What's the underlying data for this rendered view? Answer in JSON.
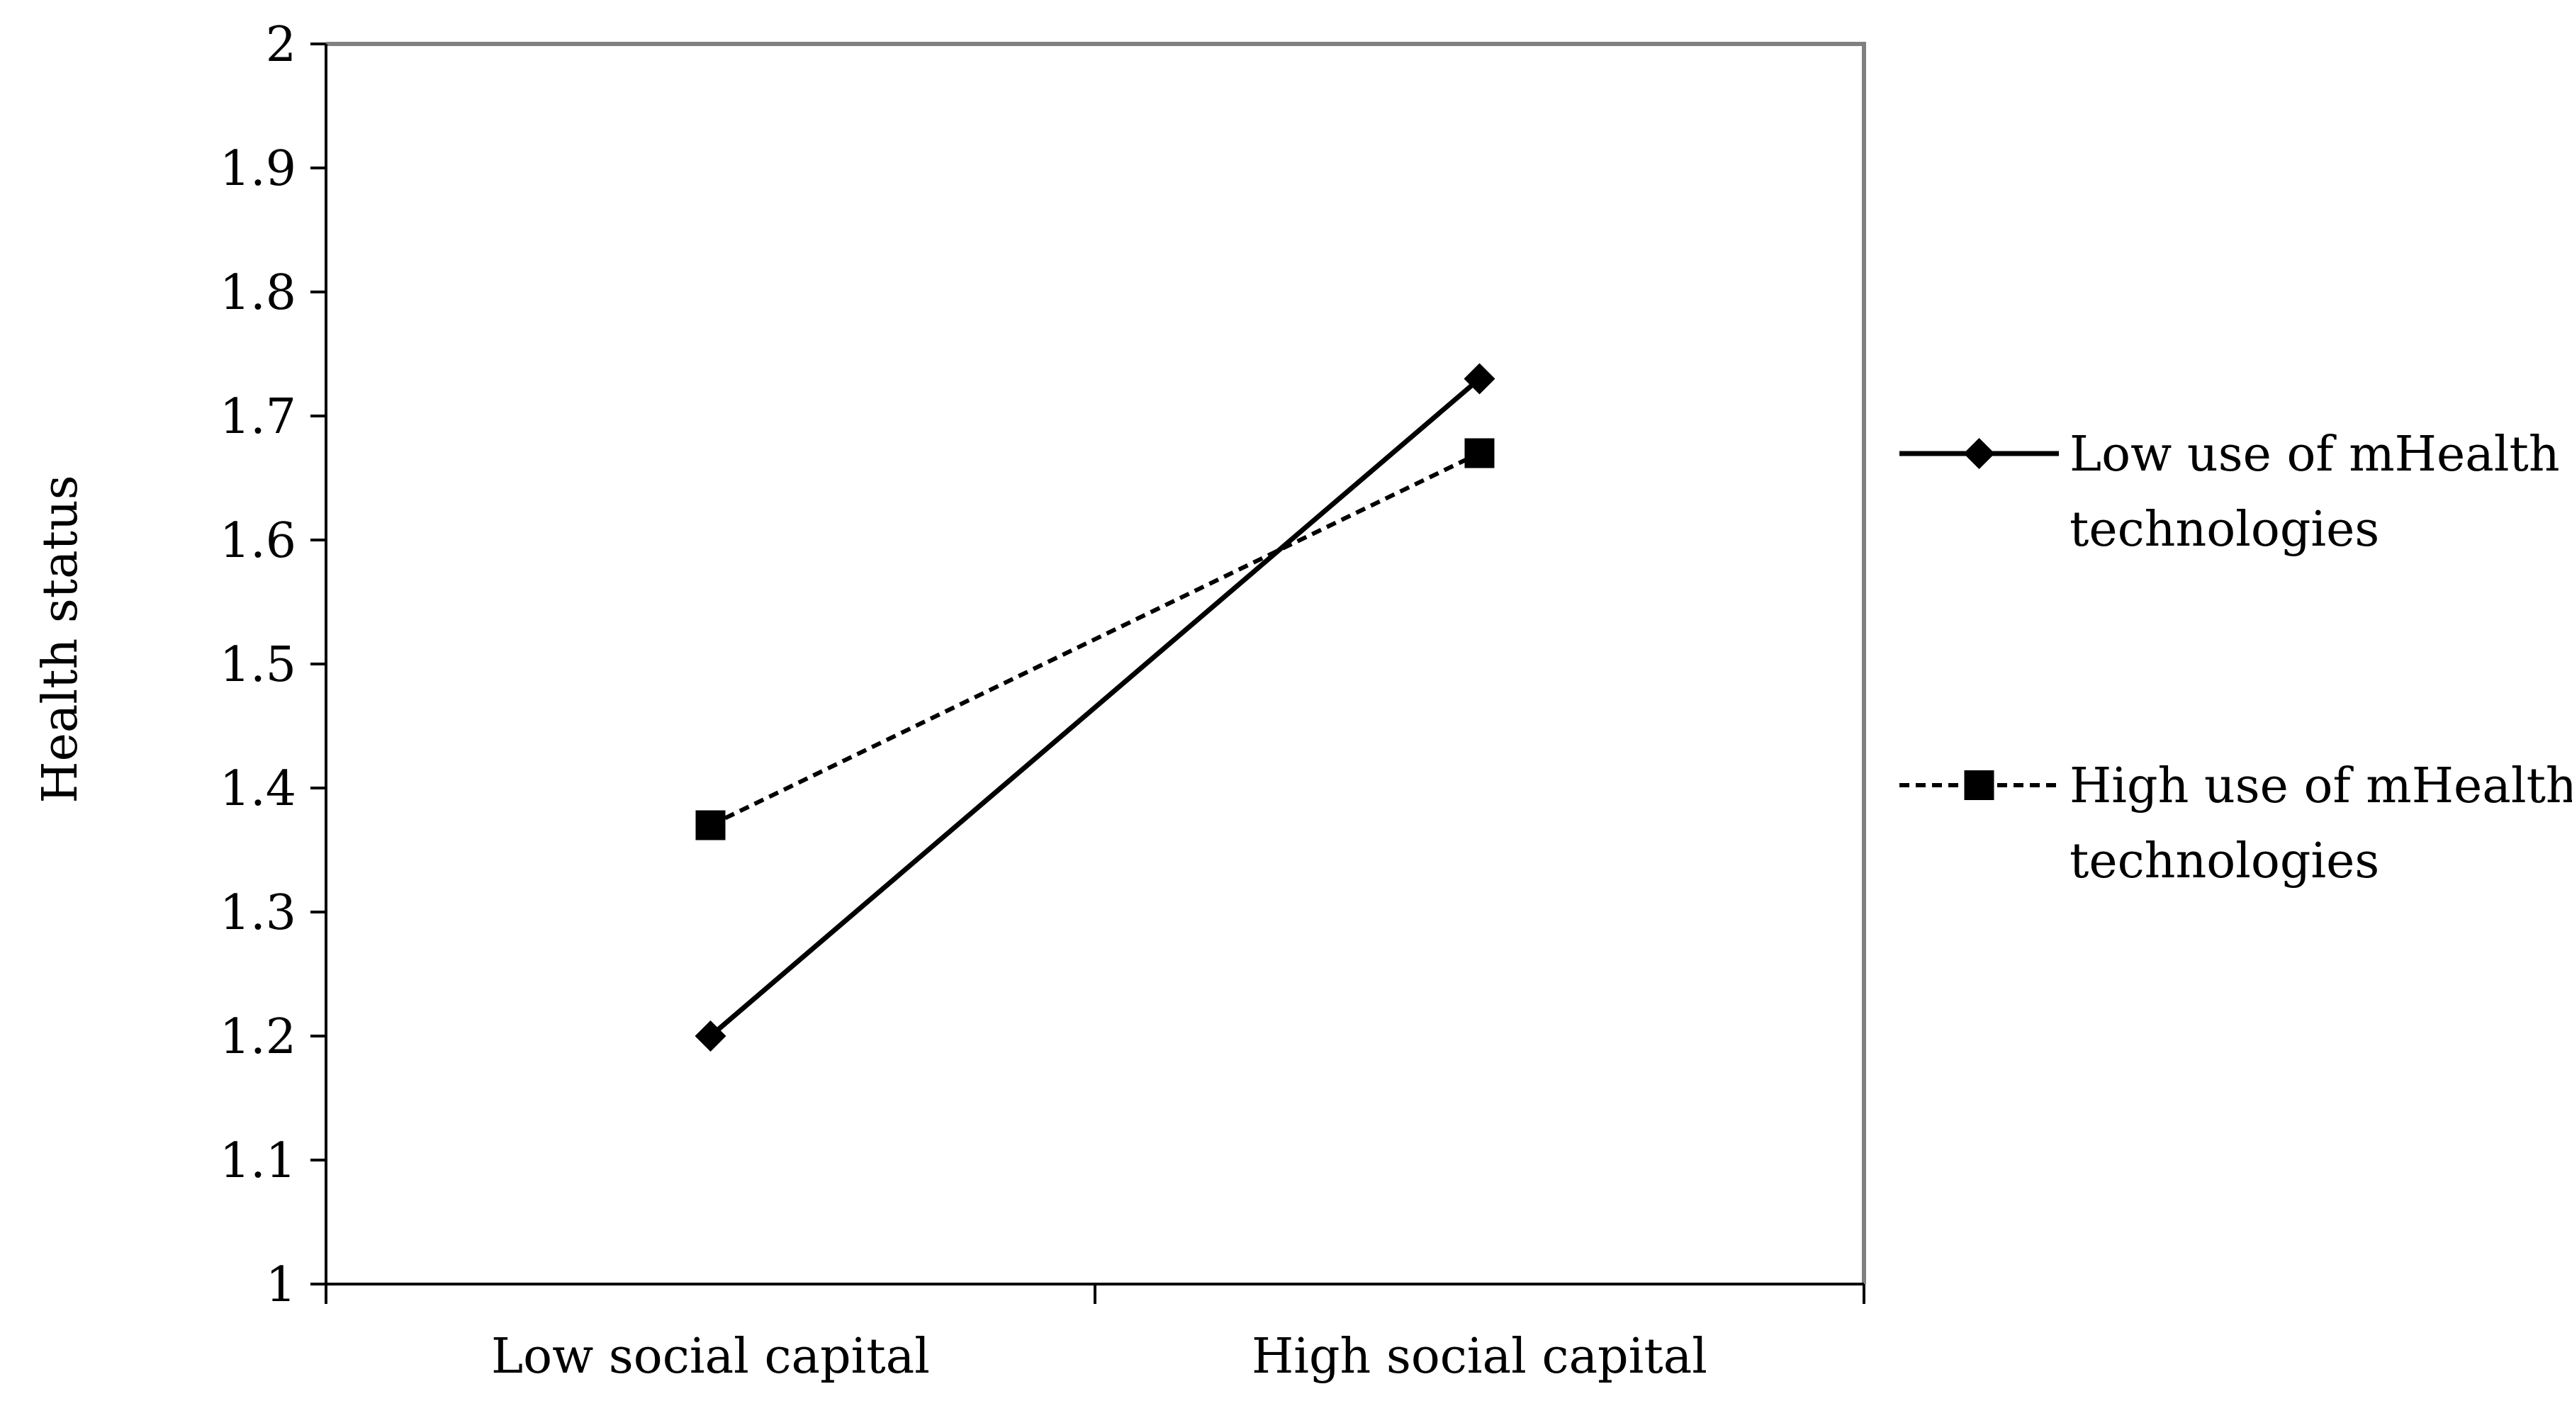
{
  "chart_data": {
    "type": "line",
    "title": "",
    "xlabel": "",
    "ylabel": "Health status",
    "categories": [
      "Low social capital",
      "High social capital"
    ],
    "ylim": [
      1,
      2
    ],
    "yticks": [
      "1",
      "1.1",
      "1.2",
      "1.3",
      "1.4",
      "1.5",
      "1.6",
      "1.7",
      "1.8",
      "1.9",
      "2"
    ],
    "grid": false,
    "legend_position": "right",
    "series": [
      {
        "name": "Low use of mHealth technologies",
        "legend_lines": [
          "Low use of mHealth",
          "technologies"
        ],
        "values": [
          1.2,
          1.73
        ],
        "line_style": "solid",
        "marker": "diamond",
        "color": "#000000"
      },
      {
        "name": "High use of mHealth technologies",
        "legend_lines": [
          "High use of mHealth",
          "technologies"
        ],
        "values": [
          1.37,
          1.67
        ],
        "line_style": "dashed",
        "marker": "square",
        "color": "#000000"
      }
    ],
    "colors": {
      "plot_border": "#808080",
      "axis": "#000000"
    }
  }
}
